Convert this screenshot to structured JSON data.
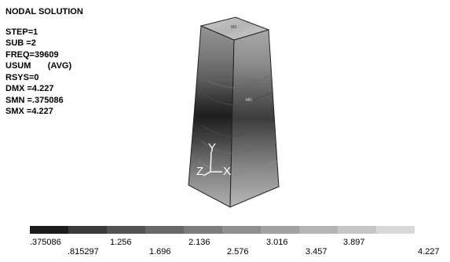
{
  "title": "NODAL SOLUTION",
  "info": [
    "STEP=1",
    "SUB =2",
    "FREQ=39609",
    "USUM       (AVG)",
    "RSYS=0",
    "DMX =4.227",
    "SMN =.375086",
    "SMX =4.227"
  ],
  "node_tags": {
    "top": "MX",
    "side": "MN"
  },
  "triad": {
    "y": "Y",
    "z": "Z",
    "x": "X"
  },
  "legend": {
    "colors": [
      "#1c1c1c",
      "#3a3a3a",
      "#525252",
      "#686868",
      "#7c7c7c",
      "#8f8f8f",
      "#a2a2a2",
      "#b4b4b4",
      "#c6c6c6",
      "#d8d8d8"
    ],
    "upper_labels": [
      ".375086",
      "1.256",
      "2.136",
      "3.016",
      "3.897"
    ],
    "lower_labels": [
      ".815297",
      "1.696",
      "2.576",
      "3.457",
      "4.227"
    ]
  }
}
